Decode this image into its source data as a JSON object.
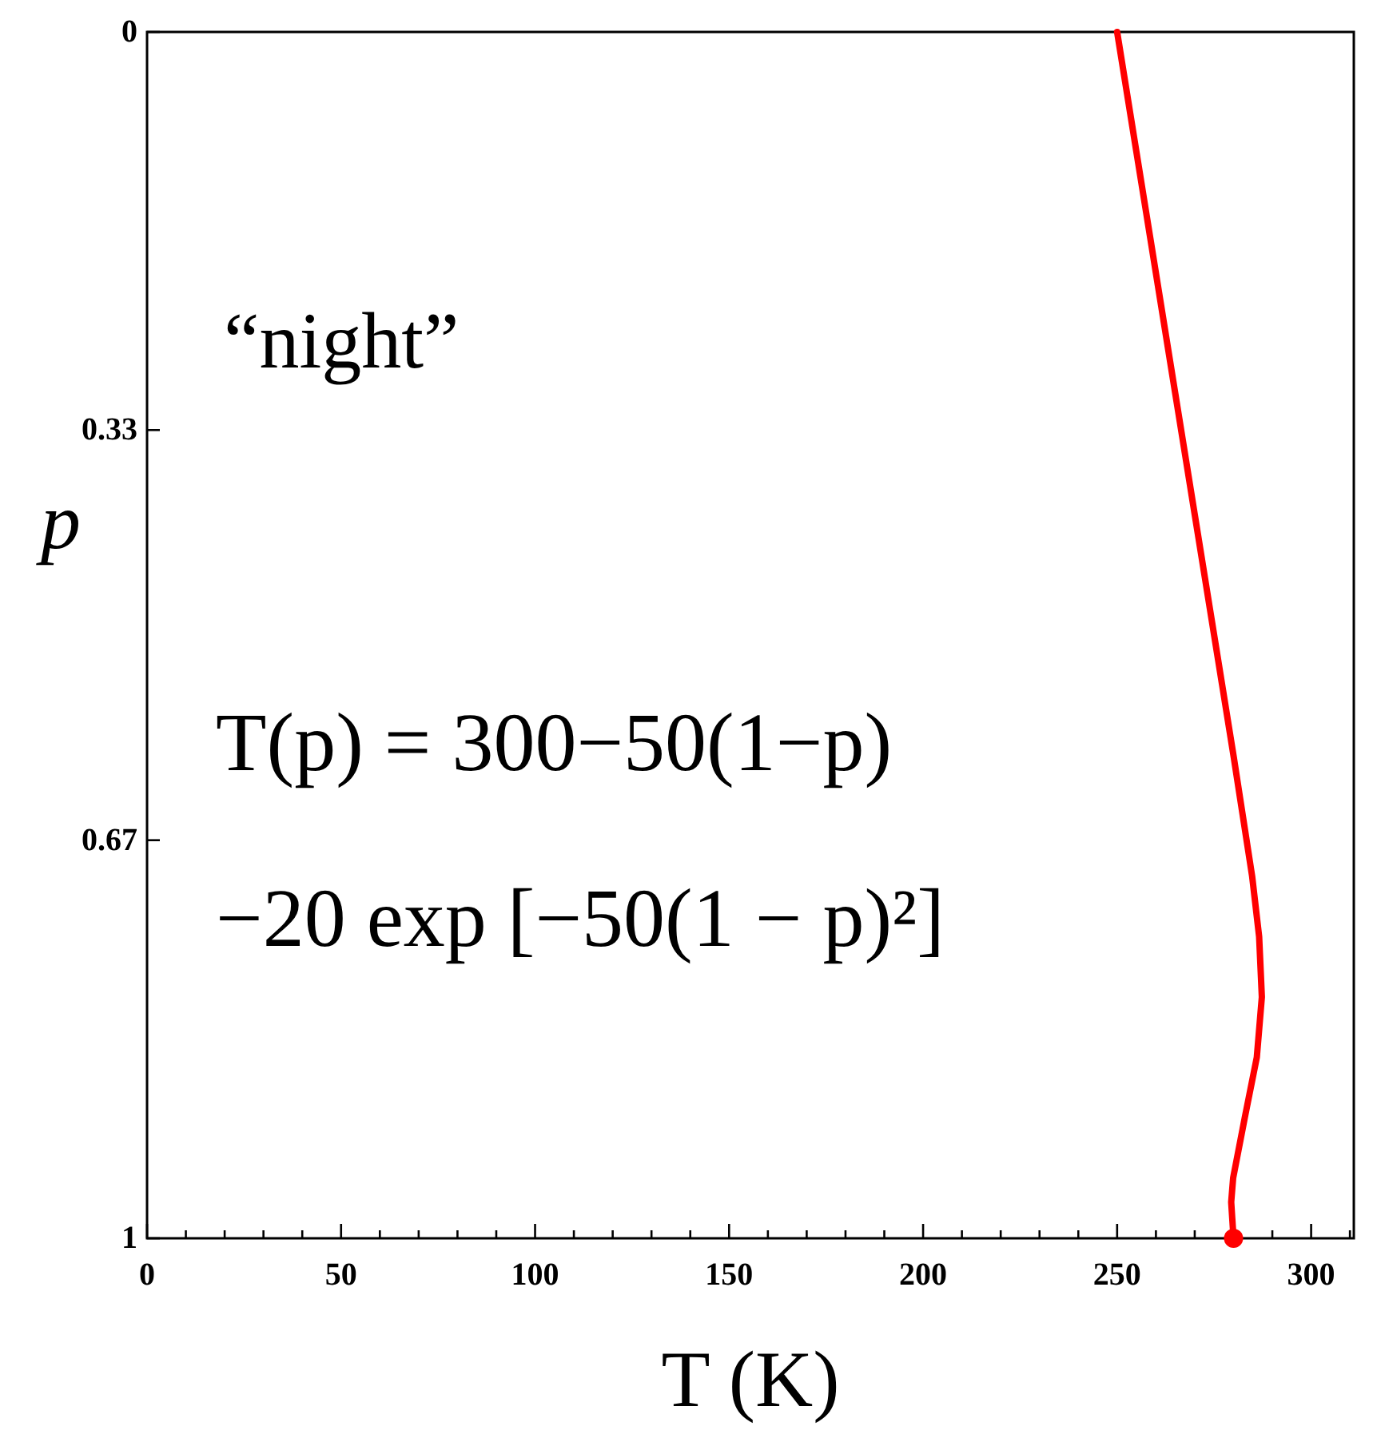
{
  "chart_data": {
    "type": "line",
    "xlabel": "T (K)",
    "ylabel": "p",
    "xlim": [
      0,
      311
    ],
    "xticks": [
      0,
      {
        "value": 10,
        "label": null
      },
      {
        "value": 20,
        "label": null
      },
      {
        "value": 30,
        "label": null
      },
      {
        "value": 40,
        "label": null
      },
      50,
      {
        "value": 60,
        "label": null
      },
      {
        "value": 70,
        "label": null
      },
      {
        "value": 80,
        "label": null
      },
      {
        "value": 90,
        "label": null
      },
      100,
      {
        "value": 110,
        "label": null
      },
      {
        "value": 120,
        "label": null
      },
      {
        "value": 130,
        "label": null
      },
      {
        "value": 140,
        "label": null
      },
      150,
      {
        "value": 160,
        "label": null
      },
      {
        "value": 170,
        "label": null
      },
      {
        "value": 180,
        "label": null
      },
      {
        "value": 190,
        "label": null
      },
      200,
      {
        "value": 210,
        "label": null
      },
      {
        "value": 220,
        "label": null
      },
      {
        "value": 230,
        "label": null
      },
      {
        "value": 240,
        "label": null
      },
      250,
      {
        "value": 260,
        "label": null
      },
      {
        "value": 270,
        "label": null
      },
      {
        "value": 280,
        "label": null
      },
      {
        "value": 290,
        "label": null
      },
      300,
      {
        "value": 310,
        "label": null
      }
    ],
    "ylim": [
      1,
      0
    ],
    "yticks": [
      0,
      0.33,
      0.67,
      1
    ],
    "grid": false,
    "series": [
      {
        "color": "#ff0000",
        "x": [
          250,
          255,
          260,
          265,
          270,
          275,
          280,
          284.8,
          286.6,
          287.3,
          286.0,
          282.9,
          279.9,
          279.4,
          280
        ],
        "values": [
          0,
          0.1,
          0.2,
          0.3,
          0.4,
          0.5,
          0.6,
          0.7,
          0.75,
          0.8,
          0.85,
          0.9,
          0.95,
          0.97,
          1
        ]
      },
      {
        "type": "scatter",
        "color": "#ff0000",
        "marker": "circle",
        "x": [
          280
        ],
        "values": [
          1
        ]
      }
    ],
    "annotations": [
      "“night”",
      "T(p) = 300−50(1−p)",
      "−20 exp [−50(1 − p)²]"
    ]
  }
}
